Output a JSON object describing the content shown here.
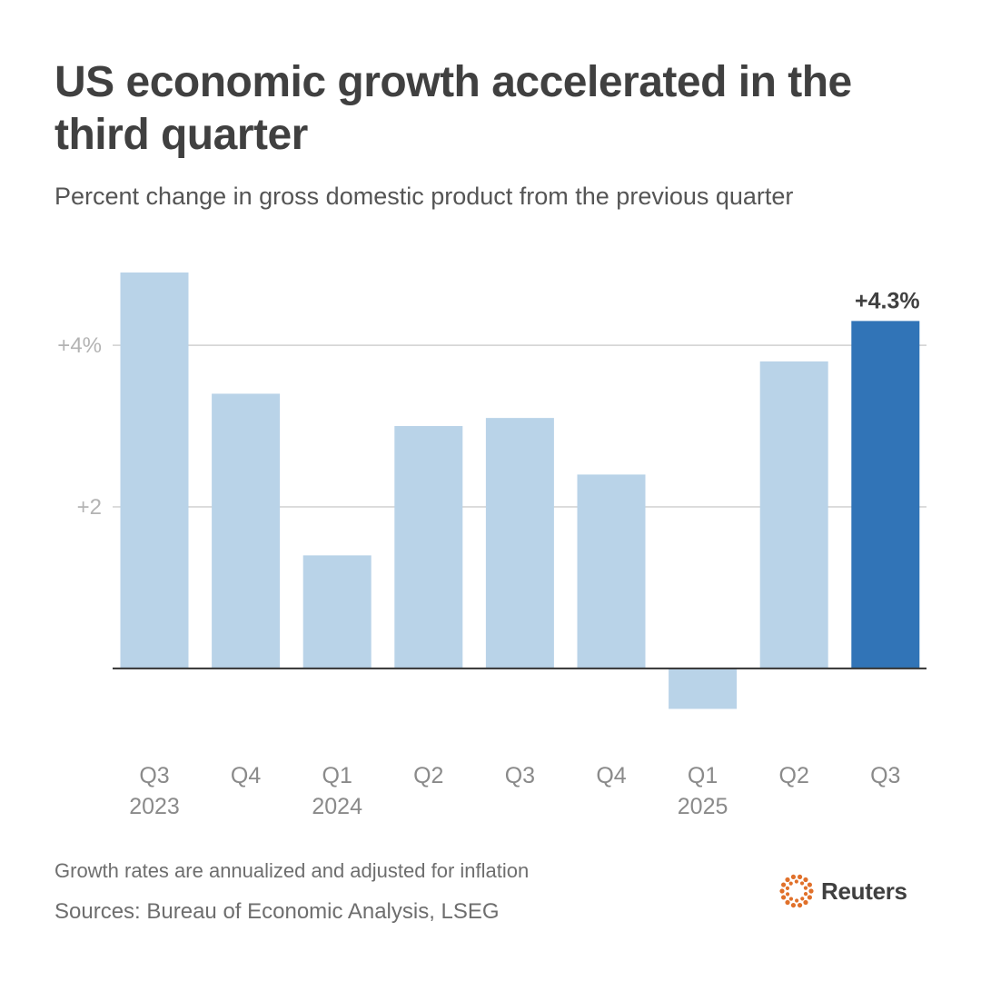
{
  "title": "US economic growth accelerated in the third quarter",
  "subtitle": "Percent change in gross domestic product from the previous quarter",
  "footnote": "Growth rates are annualized and adjusted for inflation",
  "source": "Sources: Bureau of Economic Analysis, LSEG",
  "brand": "Reuters",
  "colors": {
    "bar": "#b9d3e8",
    "highlight": "#3174b7",
    "grid": "#d0d0d0",
    "axis": "#333333",
    "logo": "#e0702a"
  },
  "chart_data": {
    "type": "bar",
    "title": "US economic growth accelerated in the third quarter",
    "subtitle": "Percent change in gross domestic product from the previous quarter",
    "xlabel": "",
    "ylabel": "",
    "categories": [
      "Q3 2023",
      "Q4",
      "Q1 2024",
      "Q2",
      "Q3",
      "Q4",
      "Q1 2025",
      "Q2",
      "Q3"
    ],
    "category_lines": [
      [
        "Q3",
        "2023"
      ],
      [
        "Q4"
      ],
      [
        "Q1",
        "2024"
      ],
      [
        "Q2"
      ],
      [
        "Q3"
      ],
      [
        "Q4"
      ],
      [
        "Q1",
        "2025"
      ],
      [
        "Q2"
      ],
      [
        "Q3"
      ]
    ],
    "values": [
      4.9,
      3.4,
      1.4,
      3.0,
      3.1,
      2.4,
      -0.5,
      3.8,
      4.3
    ],
    "highlight_index": 8,
    "highlight_label": "+4.3%",
    "ylim": [
      -0.9,
      4.9
    ],
    "yticks": [
      2,
      4
    ],
    "ytick_labels": [
      "+2",
      "+4%"
    ],
    "grid": true
  }
}
